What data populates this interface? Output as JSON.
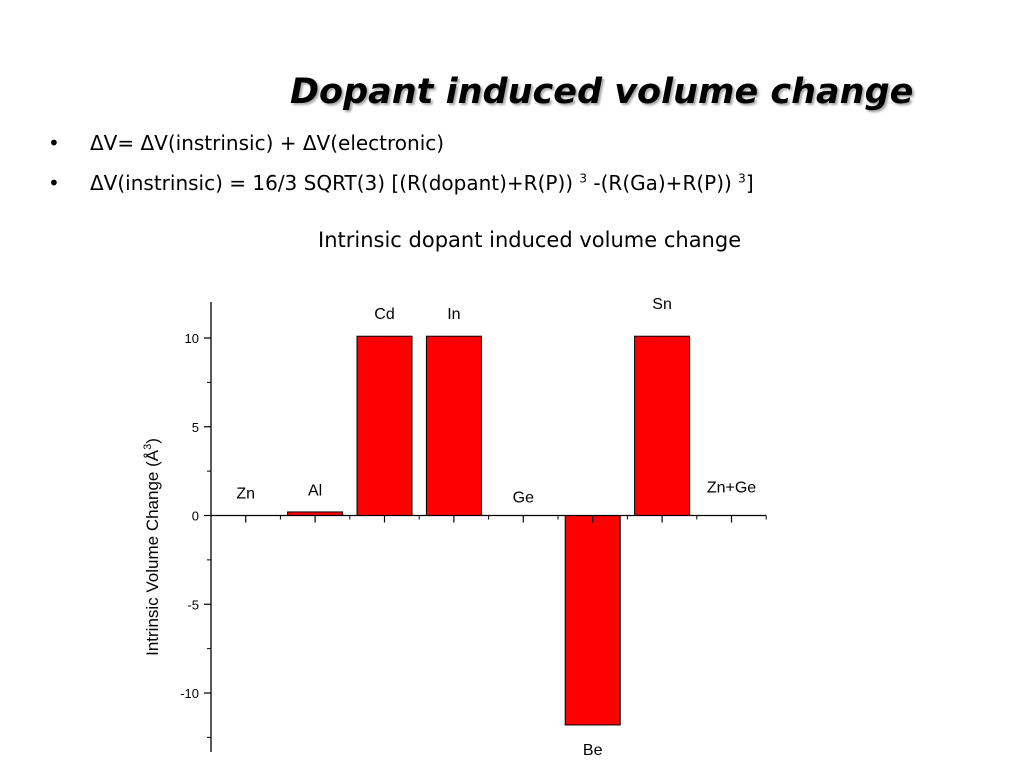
{
  "slide": {
    "title": "Dopant induced volume change",
    "bullets": [
      {
        "marker": "•",
        "text": "ΔV= ΔV(instrinsic) + ΔV(electronic)"
      },
      {
        "marker": "•",
        "text_a": "ΔV(instrinsic) = 16/3 SQRT(3) [(R(dopant)+R(P)) ",
        "sup_a": "3",
        "text_b": " -(R(Ga)+R(P)) ",
        "sup_b": "3",
        "text_c": "]"
      }
    ]
  },
  "chart_data": {
    "type": "bar",
    "title": "Intrinsic dopant induced volume change",
    "ylabel": "Intrinsic Volume Change (Å",
    "ylabel_sup": "3",
    "ylabel_end": ")",
    "categories": [
      "Zn",
      "Al",
      "Cd",
      "In",
      "Ge",
      "Be",
      "Sn",
      "Zn+Ge"
    ],
    "values": [
      0,
      0.2,
      10.1,
      10.1,
      0,
      -11.8,
      10.1,
      0
    ],
    "ylim": [
      -13.4,
      12
    ],
    "yticks": [
      10,
      5,
      0,
      -5,
      -10
    ],
    "bar_color": "#ff0000",
    "grid": false,
    "legend": "none"
  }
}
